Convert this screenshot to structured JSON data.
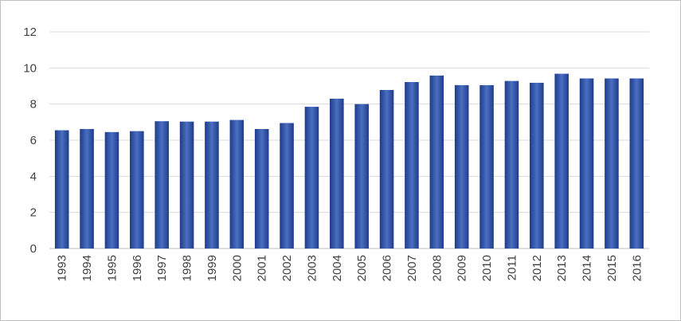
{
  "chart_data": {
    "type": "bar",
    "title": "",
    "xlabel": "",
    "ylabel": "",
    "ylim": [
      0,
      12
    ],
    "yticks": [
      0,
      2,
      4,
      6,
      8,
      10,
      12
    ],
    "grid": true,
    "legend": "none",
    "categories": [
      "1993",
      "1994",
      "1995",
      "1996",
      "1997",
      "1998",
      "1999",
      "2000",
      "2001",
      "2002",
      "2003",
      "2004",
      "2005",
      "2006",
      "2007",
      "2008",
      "2009",
      "2010",
      "2011",
      "2012",
      "2013",
      "2014",
      "2015",
      "2016"
    ],
    "values": [
      6.55,
      6.62,
      6.45,
      6.5,
      7.05,
      7.03,
      7.03,
      7.12,
      6.62,
      6.95,
      7.85,
      8.3,
      8.0,
      8.78,
      9.22,
      9.58,
      9.05,
      9.05,
      9.28,
      9.18,
      9.68,
      9.42,
      9.42,
      9.42
    ],
    "colors": {
      "bar_light": "#4a6fc2",
      "bar_dark": "#1f3b8a",
      "grid": "#d9d9d9",
      "axis": "#bfbfbf",
      "text": "#404040"
    }
  }
}
